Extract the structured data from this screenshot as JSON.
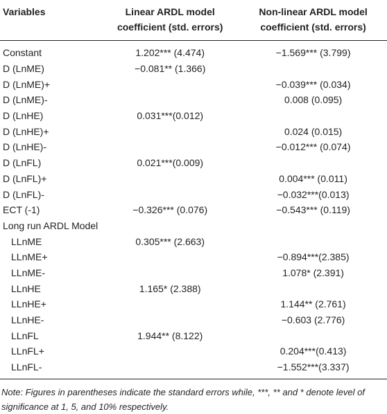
{
  "table": {
    "header": [
      "Variables",
      "Linear ARDL model coefficient (std. errors)",
      "Non-linear ARDL model coefficient (std. errors)"
    ],
    "rows": [
      [
        "Constant",
        "1.202*** (4.474)",
        "−1.569*** (3.799)"
      ],
      [
        "D (LnME)",
        "−0.081** (1.366)",
        ""
      ],
      [
        "D (LnME)+",
        "",
        "−0.039*** (0.034)"
      ],
      [
        "D (LnME)-",
        "",
        "0.008 (0.095)"
      ],
      [
        "D (LnHE)",
        "0.031***(0.012)",
        ""
      ],
      [
        "D (LnHE)+",
        "",
        "0.024 (0.015)"
      ],
      [
        "D (LnHE)-",
        "",
        "−0.012*** (0.074)"
      ],
      [
        "D (LnFL)",
        "0.021***(0.009)",
        ""
      ],
      [
        "D (LnFL)+",
        "",
        "0.004*** (0.011)"
      ],
      [
        "D (LnFL)-",
        "",
        "−0.032***(0.013)"
      ],
      [
        "ECT (-1)",
        "−0.326*** (0.076)",
        "−0.543*** (0.119)"
      ],
      [
        "Long run ARDL Model",
        "",
        ""
      ],
      [
        "LLnME",
        "0.305*** (2.663)",
        ""
      ],
      [
        "LLnME+",
        "",
        "−0.894***(2.385)"
      ],
      [
        "LLnME-",
        "",
        "1.078* (2.391)"
      ],
      [
        "LLnHE",
        "1.165* (2.388)",
        ""
      ],
      [
        "LLnHE+",
        "",
        "1.144** (2.761)"
      ],
      [
        "LLnHE-",
        "",
        "−0.603 (2.776)"
      ],
      [
        "LLnFL",
        "1.944** (8.122)",
        ""
      ],
      [
        "LLnFL+",
        "",
        "0.204***(0.413)"
      ],
      [
        "LLnFL-",
        "",
        "−1.552***(3.337)"
      ]
    ]
  },
  "note": "Note: Figures in parentheses indicate the standard errors while, ***, ** and * denote level of significance at 1, 5, and 10% respectively."
}
